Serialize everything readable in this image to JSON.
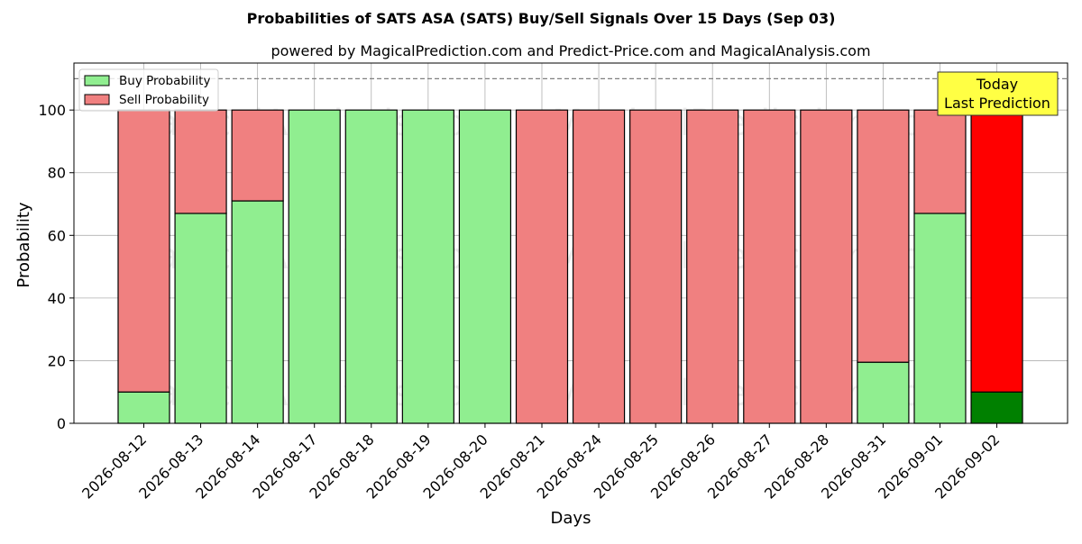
{
  "chart_data": {
    "type": "bar",
    "stacked": true,
    "title": "Probabilities of SATS ASA (SATS) Buy/Sell Signals Over 15 Days (Sep 03)",
    "subtitle": "powered by MagicalPrediction.com and Predict-Price.com and MagicalAnalysis.com",
    "xlabel": "Days",
    "ylabel": "Probability",
    "ylim": [
      0,
      115
    ],
    "yticks": [
      0,
      20,
      40,
      60,
      80,
      100
    ],
    "reference_line": 110,
    "grid": true,
    "legend_position": "top-left",
    "categories": [
      "2026-08-12",
      "2026-08-13",
      "2026-08-14",
      "2026-08-17",
      "2026-08-18",
      "2026-08-19",
      "2026-08-20",
      "2026-08-21",
      "2026-08-24",
      "2026-08-25",
      "2026-08-26",
      "2026-08-27",
      "2026-08-28",
      "2026-08-31",
      "2026-09-01",
      "2026-09-02"
    ],
    "series": [
      {
        "name": "Buy Probability",
        "color": "#90ee90",
        "values": [
          10,
          67,
          71,
          100,
          100,
          100,
          100,
          0,
          0,
          0,
          0,
          0,
          0,
          19.5,
          67,
          10
        ]
      },
      {
        "name": "Sell Probability",
        "color": "#f08080",
        "values": [
          90,
          33,
          29,
          0,
          0,
          0,
          0,
          100,
          100,
          100,
          100,
          100,
          100,
          80.5,
          33,
          90
        ]
      }
    ],
    "highlight": {
      "index": 15,
      "buy_color": "#008000",
      "sell_color": "#ff0000",
      "label_line1": "Today",
      "label_line2": "Last Prediction",
      "box_color": "#ffff44"
    },
    "watermarks": [
      "MagicalAnalysis.com",
      "MagicalPrediction.com"
    ]
  }
}
